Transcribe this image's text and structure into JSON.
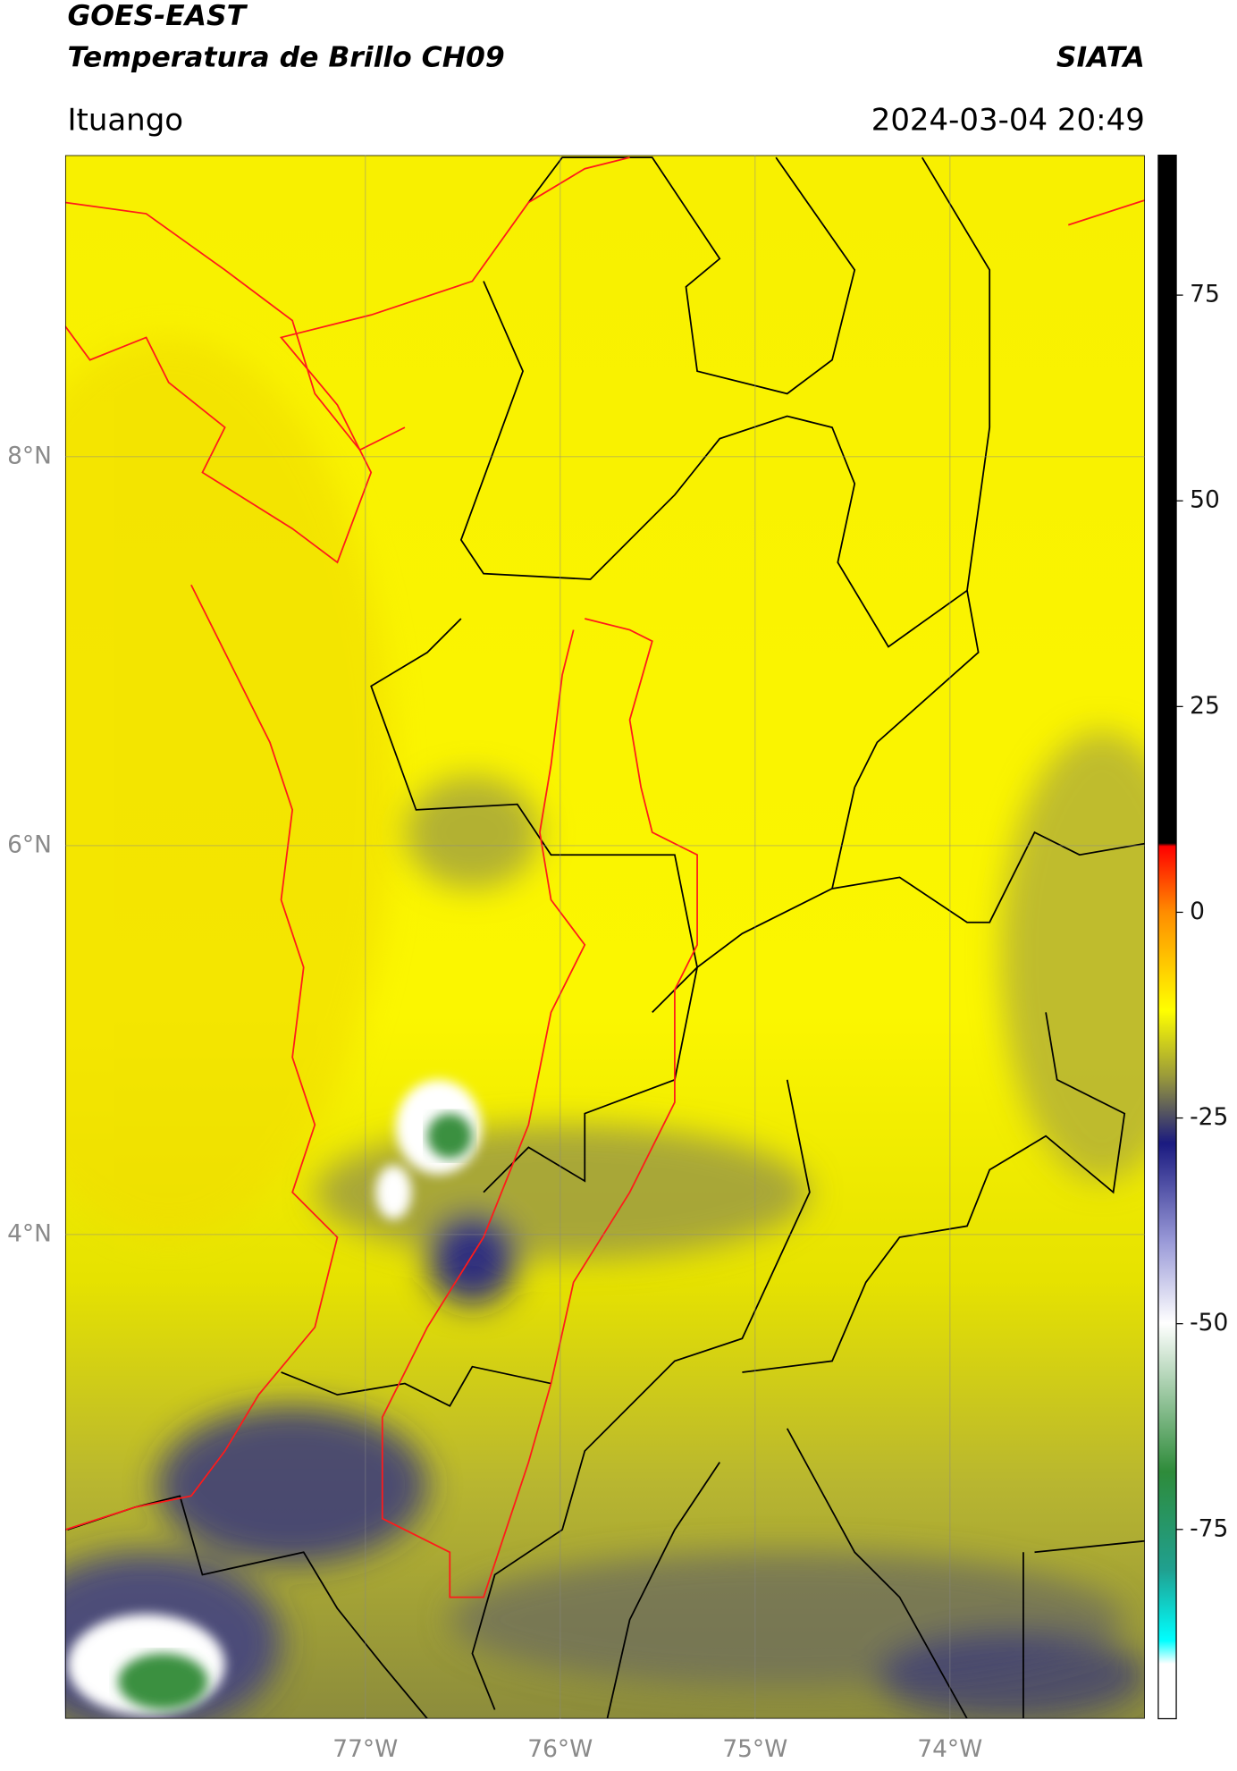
{
  "header": {
    "satellite": "GOES-EAST",
    "product": "Temperatura de Brillo CH09",
    "institution": "SIATA",
    "location": "Ituango",
    "datetime": "2024-03-04 20:49"
  },
  "chart_data": {
    "type": "map",
    "xlim": [
      -78.54,
      -73.0
    ],
    "ylim": [
      1.51,
      9.55
    ],
    "xticks": [
      {
        "value": -77,
        "label": "77°W"
      },
      {
        "value": -76,
        "label": "76°W"
      },
      {
        "value": -75,
        "label": "75°W"
      },
      {
        "value": -74,
        "label": "74°W"
      }
    ],
    "yticks": [
      {
        "value": 4,
        "label": "4°N"
      },
      {
        "value": 6,
        "label": "6°N"
      },
      {
        "value": 8,
        "label": "8°N"
      }
    ],
    "grid": true,
    "colorbar": {
      "lim": [
        -98,
        92
      ],
      "ticks": [
        -75,
        -50,
        -25,
        0,
        25,
        50,
        75
      ]
    }
  }
}
